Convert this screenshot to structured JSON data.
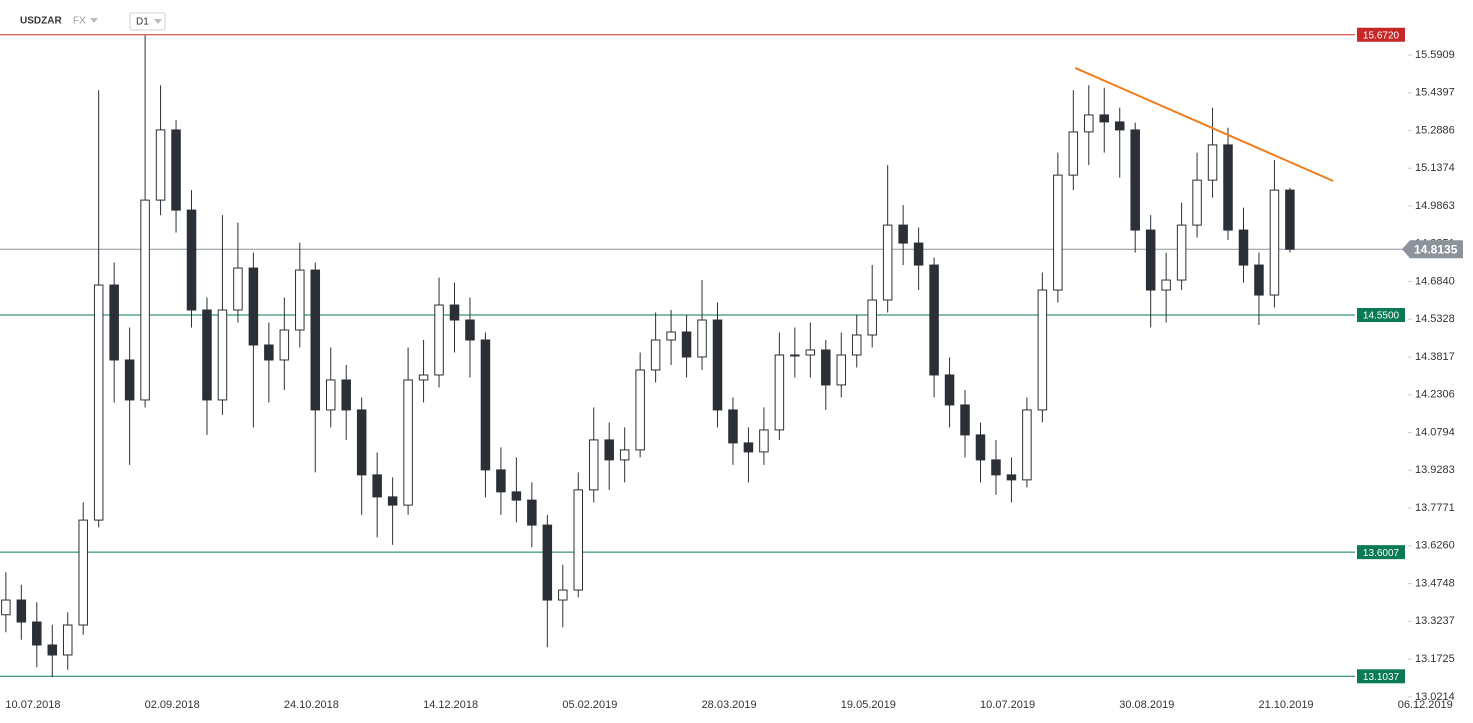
{
  "header": {
    "symbol": "USDZAR",
    "market": "FX",
    "interval": "D1"
  },
  "chart_data": {
    "type": "candlestick",
    "up_color": "#ffffff",
    "down_color": "#2b2f36",
    "border_color": "#2b2f36",
    "x": [
      -7,
      -3,
      1,
      5,
      9,
      13,
      17,
      21,
      25,
      29,
      33,
      37,
      41,
      45,
      49,
      53,
      57,
      61,
      65,
      69,
      73,
      77,
      81,
      85,
      89,
      93,
      97,
      101,
      105,
      109,
      113,
      117,
      121,
      125,
      129,
      133,
      137,
      141,
      145,
      149,
      153,
      157,
      161,
      165,
      169,
      173,
      177,
      181,
      185,
      189,
      193,
      197,
      201,
      205,
      209,
      213,
      217,
      221,
      225,
      229,
      233,
      237,
      241,
      245,
      249,
      253,
      257,
      261,
      265,
      269,
      273,
      277,
      281,
      285,
      289,
      293,
      297,
      301,
      305,
      309,
      313,
      317,
      321,
      325
    ],
    "open": [
      13.35,
      13.409,
      13.321,
      13.229,
      13.189,
      13.309,
      13.729,
      14.67,
      14.37,
      14.21,
      15.01,
      15.291,
      14.97,
      14.57,
      14.21,
      14.57,
      14.738,
      14.43,
      14.37,
      14.49,
      14.73,
      14.17,
      14.29,
      14.17,
      13.91,
      13.822,
      13.789,
      14.29,
      14.31,
      14.59,
      14.53,
      14.45,
      13.93,
      13.842,
      13.809,
      13.709,
      13.409,
      13.449,
      13.85,
      14.05,
      13.97,
      14.01,
      14.33,
      14.45,
      14.482,
      14.382,
      14.53,
      14.17,
      14.038,
      14.002,
      14.09,
      14.39,
      14.39,
      14.41,
      14.27,
      14.39,
      14.47,
      14.61,
      14.91,
      14.838,
      14.75,
      14.31,
      14.19,
      14.07,
      13.97,
      13.91,
      13.89,
      14.17,
      14.65,
      15.11,
      15.283,
      15.351,
      15.323,
      15.291,
      14.89,
      14.65,
      14.69,
      14.91,
      15.09,
      15.231,
      14.89,
      14.75,
      14.63,
      15.05
    ],
    "high": [
      13.52,
      13.47,
      13.4,
      13.31,
      13.36,
      13.8,
      15.45,
      14.76,
      14.5,
      15.67,
      15.47,
      15.33,
      15.05,
      14.62,
      14.95,
      14.92,
      14.8,
      14.52,
      14.62,
      14.84,
      14.76,
      14.42,
      14.35,
      14.22,
      14,
      13.9,
      14.42,
      14.45,
      14.7,
      14.68,
      14.62,
      14.48,
      14.02,
      13.98,
      13.88,
      13.75,
      13.55,
      13.92,
      14.18,
      14.12,
      14.1,
      14.4,
      14.56,
      14.57,
      14.55,
      14.69,
      14.6,
      14.22,
      14.1,
      14.18,
      14.48,
      14.5,
      14.52,
      14.45,
      14.48,
      14.55,
      14.75,
      15.15,
      14.99,
      14.9,
      14.78,
      14.38,
      14.25,
      14.12,
      14.05,
      13.98,
      14.22,
      14.72,
      15.2,
      15.45,
      15.47,
      15.46,
      15.38,
      15.32,
      14.95,
      14.8,
      15,
      15.2,
      15.38,
      15.3,
      14.98,
      14.8,
      15.17,
      15.06
    ],
    "low": [
      13.28,
      13.25,
      13.14,
      13.1,
      13.13,
      13.27,
      13.7,
      14.2,
      13.95,
      14.18,
      14.95,
      14.88,
      14.5,
      14.07,
      14.15,
      14.52,
      14.1,
      14.2,
      14.25,
      14.42,
      13.92,
      14.1,
      14.05,
      13.75,
      13.66,
      13.63,
      13.75,
      14.2,
      14.26,
      14.4,
      14.3,
      13.82,
      13.75,
      13.72,
      13.62,
      13.22,
      13.3,
      13.42,
      13.8,
      13.85,
      13.88,
      13.98,
      14.28,
      14.35,
      14.3,
      14.33,
      14.1,
      13.95,
      13.88,
      13.95,
      14.05,
      14.3,
      14.3,
      14.17,
      14.22,
      14.34,
      14.42,
      14.56,
      14.75,
      14.65,
      14.22,
      14.1,
      13.98,
      13.88,
      13.83,
      13.8,
      13.86,
      14.12,
      14.6,
      15.05,
      15.15,
      15.2,
      15.1,
      14.8,
      14.5,
      14.52,
      14.65,
      14.86,
      15.02,
      14.85,
      14.68,
      14.51,
      14.58,
      14.8
    ],
    "close": [
      13.409,
      13.321,
      13.229,
      13.189,
      13.309,
      13.729,
      14.67,
      14.37,
      14.21,
      15.01,
      15.291,
      14.97,
      14.57,
      14.21,
      14.57,
      14.738,
      14.43,
      14.37,
      14.49,
      14.73,
      14.17,
      14.29,
      14.17,
      13.91,
      13.822,
      13.789,
      14.29,
      14.31,
      14.59,
      14.53,
      14.45,
      13.93,
      13.842,
      13.809,
      13.709,
      13.409,
      13.449,
      13.85,
      14.05,
      13.97,
      14.01,
      14.33,
      14.45,
      14.482,
      14.382,
      14.53,
      14.17,
      14.038,
      14.002,
      14.09,
      14.39,
      14.39,
      14.41,
      14.27,
      14.39,
      14.47,
      14.61,
      14.91,
      14.838,
      14.75,
      14.31,
      14.19,
      14.07,
      13.97,
      13.91,
      13.89,
      14.17,
      14.65,
      15.11,
      15.283,
      15.351,
      15.323,
      15.291,
      14.89,
      14.65,
      14.69,
      14.91,
      15.09,
      15.231,
      14.89,
      14.75,
      14.63,
      15.05,
      14.8135
    ],
    "xlim": [
      -8,
      362
    ],
    "xticks": [
      {
        "value": 0,
        "label": "10.07.2018"
      },
      {
        "value": 36,
        "label": "02.09.2018"
      },
      {
        "value": 72,
        "label": "24.10.2018"
      },
      {
        "value": 108,
        "label": "14.12.2018"
      },
      {
        "value": 144,
        "label": "05.02.2019"
      },
      {
        "value": 180,
        "label": "28.03.2019"
      },
      {
        "value": 216,
        "label": "19.05.2019"
      },
      {
        "value": 252,
        "label": "10.07.2019"
      },
      {
        "value": 288,
        "label": "30.08.2019"
      },
      {
        "value": 324,
        "label": "21.10.2019"
      },
      {
        "value": 360,
        "label": "06.12.2019"
      }
    ],
    "ylim": [
      13.0088,
      15.8111
    ],
    "yticks": [
      15.5909,
      15.4397,
      15.2886,
      15.1374,
      14.9863,
      14.8351,
      {
        "value": 14.684,
        "label": "14.6840"
      },
      14.5328,
      14.3817,
      14.2306,
      14.0794,
      13.9283,
      13.7771,
      {
        "value": 13.626,
        "label": "13.6260"
      },
      13.4748,
      13.3237,
      13.1725,
      13.0214
    ],
    "levels": [
      {
        "value": 15.672,
        "label": "15.6720",
        "color": "#c62828"
      },
      {
        "value": 14.55,
        "label": "14.5500",
        "color": "#0a7a55"
      },
      {
        "value": 13.6007,
        "color": "#0a7a55"
      },
      {
        "value": 13.1037,
        "color": "#0a7a55"
      }
    ],
    "last_price": {
      "value": 14.8135,
      "color": "#8d939c"
    },
    "trendline": {
      "x": [
        269.5,
        336.2
      ],
      "y": [
        15.539,
        15.0865
      ],
      "color": "#f07c1c"
    }
  }
}
